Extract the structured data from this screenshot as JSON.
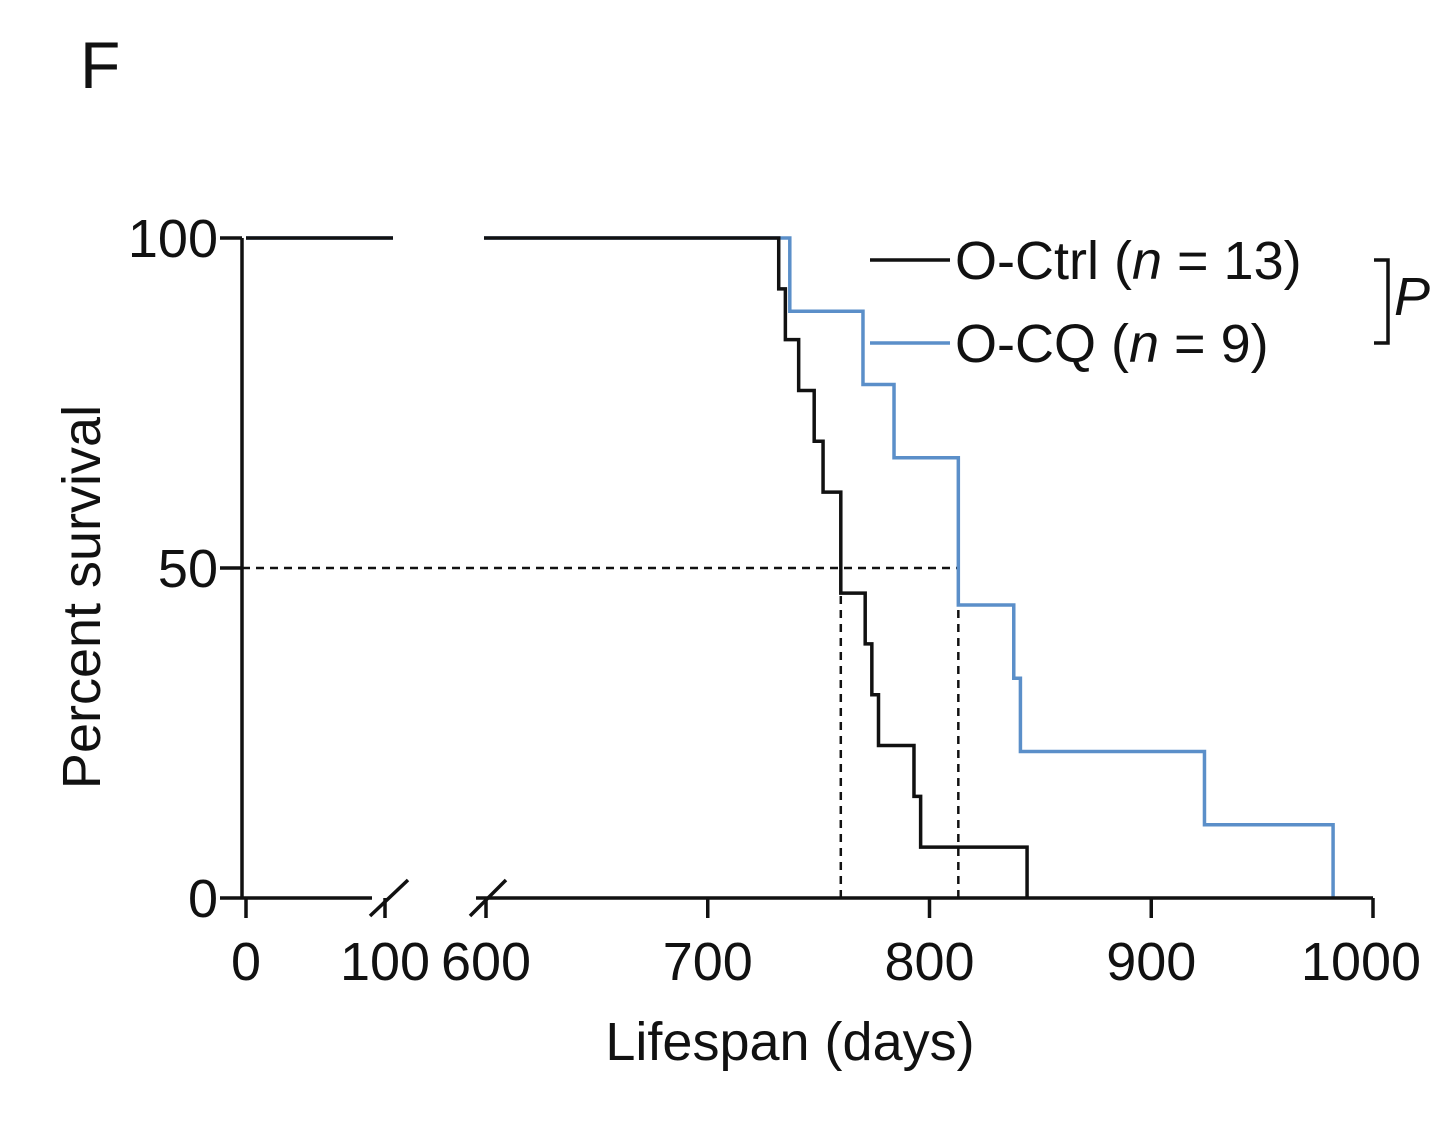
{
  "panel_label": "F",
  "chart_data": {
    "type": "line",
    "subtype": "kaplan-meier-step",
    "title": "",
    "xlabel": "Lifespan (days)",
    "ylabel": "Percent survival",
    "xlim": [
      0,
      1000
    ],
    "x_axis_break": [
      100,
      600
    ],
    "ylim": [
      0,
      100
    ],
    "x_ticks": [
      {
        "value": 0,
        "label": "0"
      },
      {
        "value": 100,
        "label": "100"
      },
      {
        "value": 600,
        "label": "600"
      },
      {
        "value": 700,
        "label": "700"
      },
      {
        "value": 800,
        "label": "800"
      },
      {
        "value": 900,
        "label": "900"
      },
      {
        "value": 1000,
        "label": "1000"
      }
    ],
    "y_ticks": [
      {
        "value": 0,
        "label": "0"
      },
      {
        "value": 50,
        "label": "50"
      },
      {
        "value": 100,
        "label": "100"
      }
    ],
    "legend_position": "top-right",
    "significance_label": "P",
    "series": [
      {
        "name": "O-Ctrl",
        "legend_parts": [
          "O-Ctrl (",
          "n",
          " = 13)"
        ],
        "color": "#111111",
        "points": [
          [
            0,
            100
          ],
          [
            732,
            100
          ],
          [
            732,
            92.3
          ],
          [
            735,
            92.3
          ],
          [
            735,
            84.6
          ],
          [
            741,
            84.6
          ],
          [
            741,
            76.9
          ],
          [
            748,
            76.9
          ],
          [
            748,
            69.2
          ],
          [
            752,
            69.2
          ],
          [
            752,
            61.5
          ],
          [
            760,
            61.5
          ],
          [
            760,
            46.2
          ],
          [
            771,
            46.2
          ],
          [
            771,
            38.5
          ],
          [
            774,
            38.5
          ],
          [
            774,
            30.8
          ],
          [
            777,
            30.8
          ],
          [
            777,
            23.1
          ],
          [
            793,
            23.1
          ],
          [
            793,
            15.4
          ],
          [
            796,
            15.4
          ],
          [
            796,
            7.7
          ],
          [
            844,
            7.7
          ],
          [
            844,
            0
          ]
        ]
      },
      {
        "name": "O-CQ",
        "legend_parts": [
          "O-CQ (",
          "n",
          " = 9)"
        ],
        "color": "#5b8fc9",
        "points": [
          [
            0,
            100
          ],
          [
            737,
            100
          ],
          [
            737,
            88.9
          ],
          [
            770,
            88.9
          ],
          [
            770,
            77.8
          ],
          [
            784,
            77.8
          ],
          [
            784,
            66.7
          ],
          [
            813,
            66.7
          ],
          [
            813,
            44.4
          ],
          [
            838,
            44.4
          ],
          [
            838,
            33.3
          ],
          [
            841,
            33.3
          ],
          [
            841,
            22.2
          ],
          [
            924,
            22.2
          ],
          [
            924,
            11.1
          ],
          [
            982,
            11.1
          ],
          [
            982,
            0
          ]
        ]
      }
    ],
    "median_survival": [
      {
        "series": "O-Ctrl",
        "x": 760,
        "y": 50
      },
      {
        "series": "O-CQ",
        "x": 813,
        "y": 50
      }
    ]
  }
}
